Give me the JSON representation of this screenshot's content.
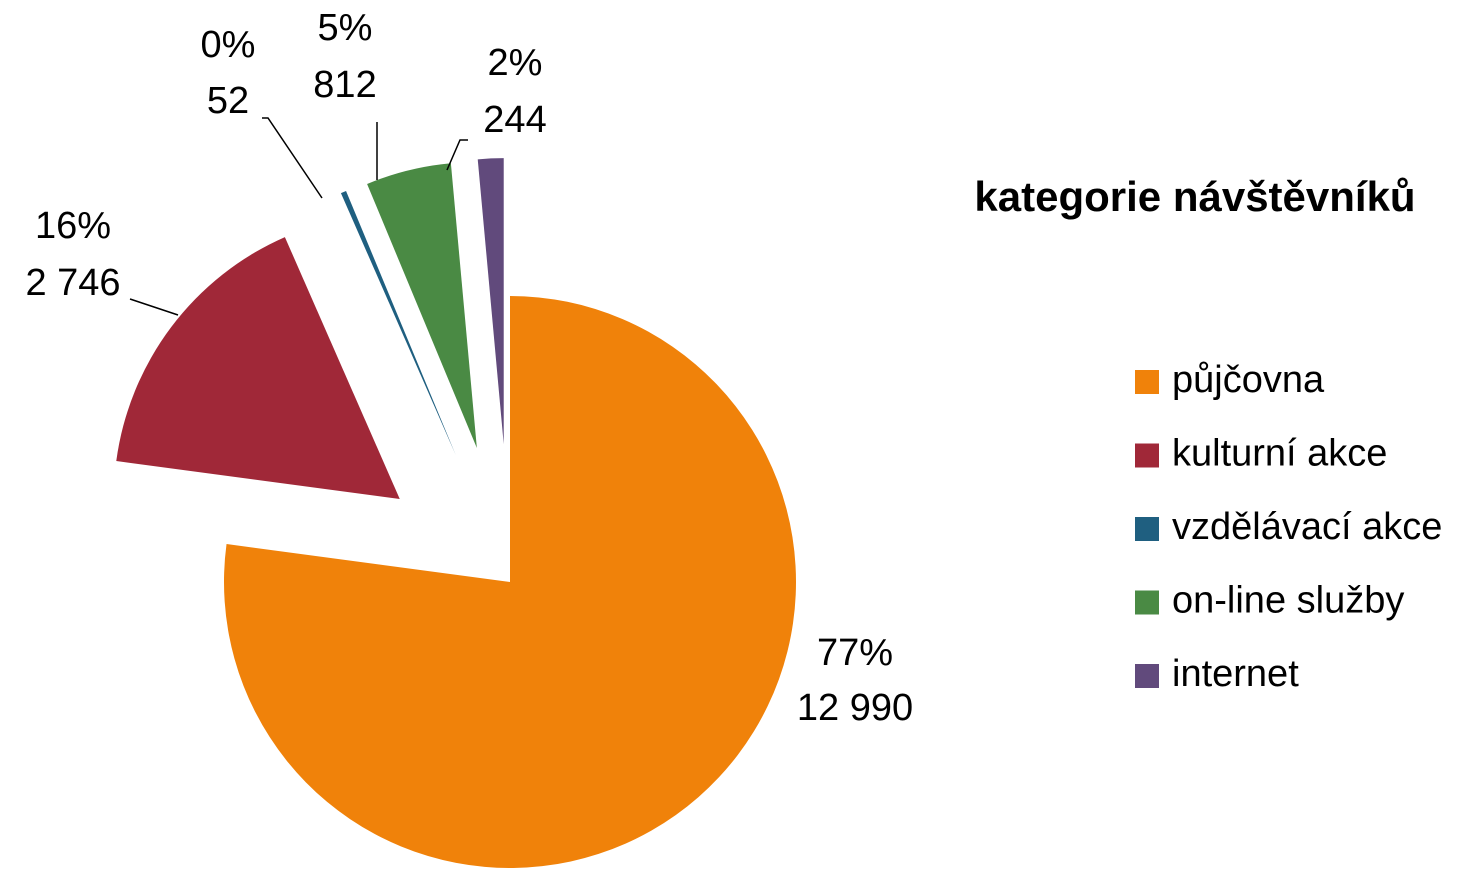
{
  "chart_data": {
    "type": "pie",
    "legend_title": "kategorie návštěvníků",
    "categories": [
      "půjčovna",
      "kulturní akce",
      "vzdělávací akce",
      "on-line služby",
      "internet"
    ],
    "values": [
      12990,
      2746,
      52,
      812,
      244
    ],
    "value_labels": [
      "12 990",
      "2 746",
      "52",
      "812",
      "244"
    ],
    "percentages": [
      77,
      16,
      0,
      5,
      2
    ],
    "percentage_labels": [
      "77%",
      "16%",
      "0%",
      "5%",
      "2%"
    ],
    "colors": [
      "#f0820a",
      "#a02838",
      "#1f5f80",
      "#4a8a44",
      "#614a7c"
    ],
    "legend": "right"
  }
}
